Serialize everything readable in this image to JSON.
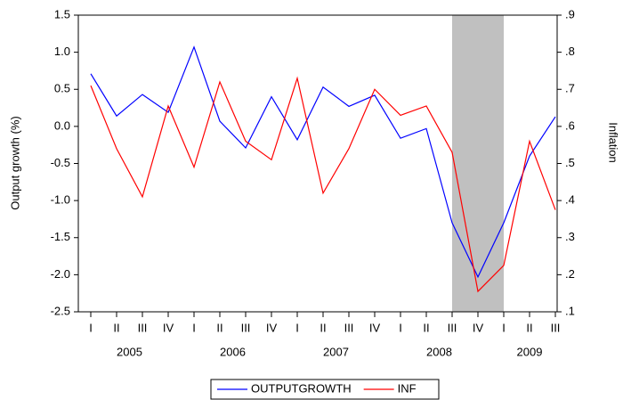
{
  "chart_data": {
    "type": "line",
    "categories": [
      "I",
      "II",
      "III",
      "IV",
      "I",
      "II",
      "III",
      "IV",
      "I",
      "II",
      "III",
      "IV",
      "I",
      "II",
      "III",
      "IV",
      "I",
      "II",
      "III"
    ],
    "years": [
      "2005",
      "2006",
      "2007",
      "2008",
      "2009"
    ],
    "ylabel": "Output growth (%)",
    "y2label": "Inflation",
    "ylim": [
      -2.5,
      1.5
    ],
    "yticks": [
      1.5,
      {
        "value": 1.0,
        "label": "1.0"
      },
      0.5,
      {
        "value": 0.0,
        "label": "0.0"
      },
      -0.5,
      {
        "value": -1.0,
        "label": "-1.0"
      },
      -1.5,
      {
        "value": -2.0,
        "label": "-2.0"
      },
      -2.5
    ],
    "y2lim": [
      0.1,
      0.9
    ],
    "y2ticks": [
      {
        "value": 0.9,
        "label": ".9"
      },
      {
        "value": 0.8,
        "label": ".8"
      },
      {
        "value": 0.7,
        "label": ".7"
      },
      {
        "value": 0.6,
        "label": ".6"
      },
      {
        "value": 0.5,
        "label": ".5"
      },
      {
        "value": 0.4,
        "label": ".4"
      },
      {
        "value": 0.3,
        "label": ".3"
      },
      {
        "value": 0.2,
        "label": ".2"
      },
      {
        "value": 0.1,
        "label": ".1"
      }
    ],
    "shaded": {
      "start": 14,
      "end": 16,
      "color": "#c0c0c0"
    },
    "series": [
      {
        "name": "OUTPUTGROWTH",
        "color": "#0000ff",
        "values": [
          0.71,
          0.14,
          0.43,
          0.19,
          1.07,
          0.07,
          -0.29,
          0.4,
          -0.18,
          0.53,
          0.27,
          0.42,
          -0.16,
          -0.03,
          -1.3,
          -2.03,
          -1.3,
          -0.4,
          0.13
        ]
      },
      {
        "name": "INF",
        "color": "#ff0000",
        "axis": "y2",
        "values": [
          0.71,
          0.54,
          0.41,
          0.655,
          0.49,
          0.72,
          0.56,
          0.51,
          0.73,
          0.42,
          0.54,
          0.7,
          0.63,
          0.655,
          0.53,
          0.155,
          0.225,
          0.56,
          0.375
        ]
      }
    ]
  }
}
